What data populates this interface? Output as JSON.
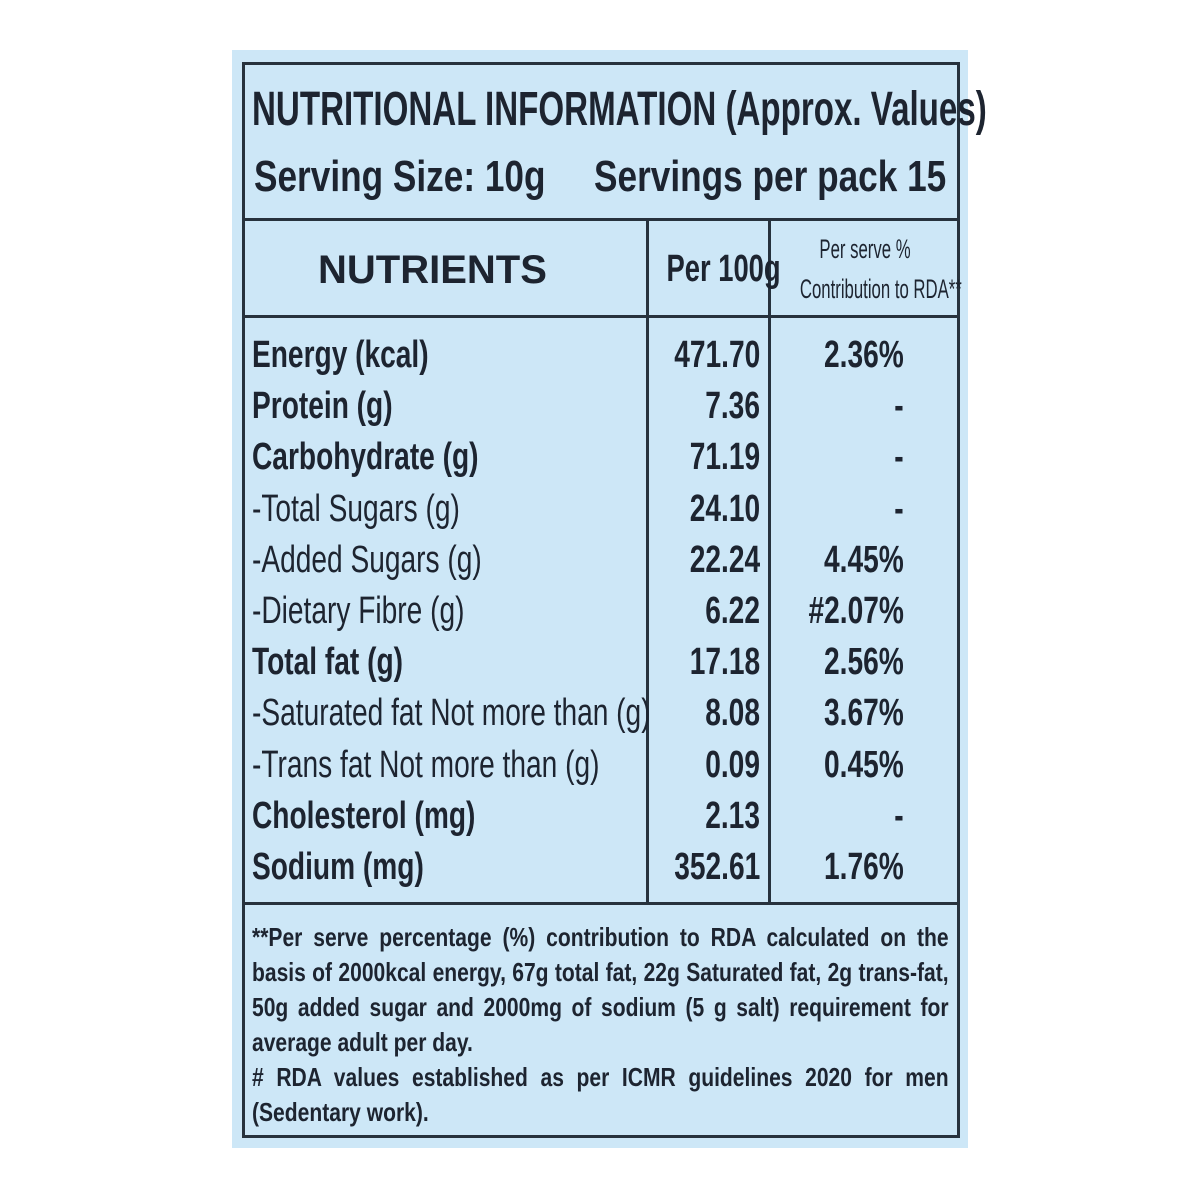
{
  "header": {
    "title": "NUTRITIONAL INFORMATION (Approx. Values)",
    "serving_size": "Serving Size: 10g",
    "servings_per_pack": "Servings per pack 15"
  },
  "table": {
    "columns": [
      "NUTRIENTS",
      "Per 100g",
      [
        "Per serve %",
        "Contribution to RDA**"
      ]
    ],
    "rows": [
      [
        "Energy (kcal)",
        "471.70",
        "2.36%"
      ],
      [
        "Protein (g)",
        "7.36",
        "-"
      ],
      [
        "Carbohydrate (g)",
        "71.19",
        "-"
      ],
      [
        "-Total Sugars (g)",
        "24.10",
        "-"
      ],
      [
        "-Added Sugars (g)",
        "22.24",
        "4.45%"
      ],
      [
        "-Dietary Fibre (g)",
        "6.22",
        "#2.07%"
      ],
      [
        "Total fat (g)",
        "17.18",
        "2.56%"
      ],
      [
        "-Saturated fat Not more than (g)",
        "8.08",
        "3.67%"
      ],
      [
        "-Trans fat Not more than (g)",
        "0.09",
        "0.45%"
      ],
      [
        "Cholesterol (mg)",
        "2.13",
        "-"
      ],
      [
        "Sodium (mg)",
        "352.61",
        "1.76%"
      ]
    ]
  },
  "footnotes": [
    "**Per serve percentage (%) contribution to RDA calculated on the basis of 2000kcal energy, 67g total fat, 22g Saturated fat, 2g trans-fat, 50g added sugar and 2000mg of sodium (5 g salt) requirement for average adult per day.",
    "# RDA values established as per ICMR guidelines 2020 for men (Sedentary work)."
  ]
}
